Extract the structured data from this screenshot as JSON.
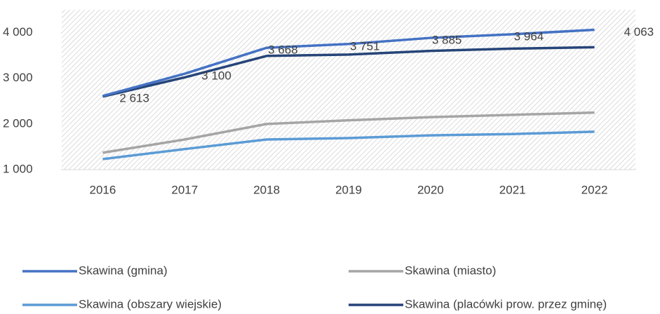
{
  "chart_data": {
    "type": "line",
    "categories": [
      "2016",
      "2017",
      "2018",
      "2019",
      "2020",
      "2021",
      "2022"
    ],
    "series": [
      {
        "name": "Skawina (gmina)",
        "color": "#4472c4",
        "values": [
          2613,
          3100,
          3668,
          3751,
          3885,
          3964,
          4063
        ],
        "value_labels": [
          "2 613",
          "3 100",
          "3 668",
          "3 751",
          "3 885",
          "3 964",
          "4 063"
        ]
      },
      {
        "name": "Skawina (miasto)",
        "color": "#a5a5a5",
        "values": [
          1370,
          1660,
          2000,
          2080,
          2150,
          2200,
          2250
        ]
      },
      {
        "name": "Skawina (obszary wiejskie)",
        "color": "#5b9bd5",
        "values": [
          1230,
          1450,
          1660,
          1690,
          1750,
          1780,
          1830
        ]
      },
      {
        "name": "Skawina (placówki prow. przez gminę)",
        "color": "#264478",
        "values": [
          2600,
          3020,
          3490,
          3520,
          3600,
          3650,
          3680
        ]
      }
    ],
    "ylim": [
      1000,
      4500
    ],
    "yticks": [
      {
        "value": 1000,
        "label": "1 000"
      },
      {
        "value": 2000,
        "label": "2 000"
      },
      {
        "value": 3000,
        "label": "3 000"
      },
      {
        "value": 4000,
        "label": "4 000"
      }
    ]
  }
}
